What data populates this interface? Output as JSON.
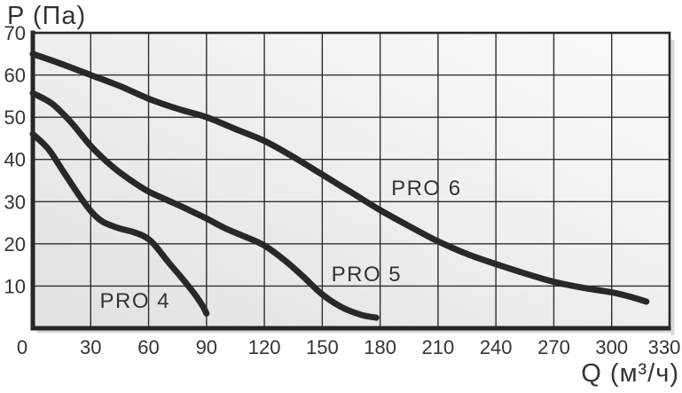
{
  "chart_data": {
    "type": "line",
    "title": "",
    "xlabel": "Q (м³/ч)",
    "ylabel": "P (Па)",
    "xlim": [
      0,
      330
    ],
    "ylim": [
      0,
      70
    ],
    "xticks": [
      0,
      30,
      60,
      90,
      120,
      150,
      180,
      210,
      240,
      270,
      300,
      330
    ],
    "yticks": [
      10,
      20,
      30,
      40,
      50,
      60,
      70
    ],
    "grid": true,
    "legend_position": "inline-labels",
    "series": [
      {
        "name": "PRO 4",
        "label_at": [
          53,
          6.6
        ],
        "points": [
          [
            0,
            46
          ],
          [
            8,
            42.5
          ],
          [
            16,
            37
          ],
          [
            24,
            31.5
          ],
          [
            30,
            27.8
          ],
          [
            36,
            25.3
          ],
          [
            44,
            23.8
          ],
          [
            52,
            22.8
          ],
          [
            58,
            21.7
          ],
          [
            63,
            19.8
          ],
          [
            70,
            15.8
          ],
          [
            78,
            11.5
          ],
          [
            84,
            8
          ],
          [
            88,
            5.3
          ],
          [
            90,
            3.5
          ]
        ]
      },
      {
        "name": "PRO 5",
        "label_at": [
          173,
          12.9
        ],
        "points": [
          [
            0,
            55.7
          ],
          [
            10,
            53.2
          ],
          [
            20,
            48.7
          ],
          [
            30,
            43.2
          ],
          [
            40,
            38.8
          ],
          [
            50,
            35.3
          ],
          [
            60,
            32.4
          ],
          [
            70,
            30.3
          ],
          [
            80,
            28.2
          ],
          [
            90,
            26
          ],
          [
            100,
            23.6
          ],
          [
            110,
            21.7
          ],
          [
            120,
            19.6
          ],
          [
            130,
            16.3
          ],
          [
            140,
            12.3
          ],
          [
            150,
            8
          ],
          [
            160,
            5
          ],
          [
            170,
            3.2
          ],
          [
            178,
            2.5
          ]
        ]
      },
      {
        "name": "PRO 6",
        "label_at": [
          204,
          33.3
        ],
        "points": [
          [
            0,
            65
          ],
          [
            15,
            62.6
          ],
          [
            30,
            60
          ],
          [
            45,
            57.4
          ],
          [
            60,
            54.4
          ],
          [
            75,
            52
          ],
          [
            90,
            50
          ],
          [
            105,
            47.2
          ],
          [
            120,
            44.4
          ],
          [
            135,
            40.6
          ],
          [
            150,
            36.4
          ],
          [
            165,
            32.2
          ],
          [
            180,
            28
          ],
          [
            195,
            24.2
          ],
          [
            210,
            20.6
          ],
          [
            225,
            17.6
          ],
          [
            240,
            15.2
          ],
          [
            255,
            13
          ],
          [
            270,
            11
          ],
          [
            285,
            9.6
          ],
          [
            300,
            8.5
          ],
          [
            310,
            7.4
          ],
          [
            318,
            6.3
          ]
        ]
      }
    ],
    "colors": {
      "curve": "#282828",
      "grid": "#2e2e2e",
      "axis": "#262626",
      "text": "#333333",
      "plot_bg_from": "#e1e1e1",
      "plot_bg_to": "#fbfbfb",
      "shadow": "#bdbdbd",
      "background": "#ffffff"
    }
  }
}
